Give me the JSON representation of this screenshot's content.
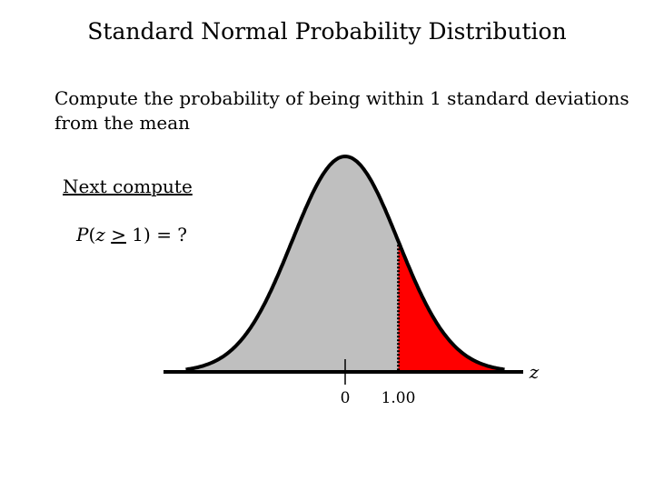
{
  "title": "Standard Normal Probability Distribution",
  "prompt": "Compute the probability of being within 1 standard deviations from the mean",
  "next_label": "Next compute",
  "question": {
    "p": "P",
    "open": "(",
    "z": "z",
    "ge": ">",
    "rest": " 1) = ?"
  },
  "colors": {
    "curve_fill": "#bfbfbf",
    "shaded_tail": "#ff0000",
    "outline": "#000000"
  },
  "chart_data": {
    "type": "area",
    "distribution": "standard normal",
    "xlim": [
      -3,
      3
    ],
    "shaded_region": {
      "from": 1.0,
      "to": 3.0
    },
    "ticks": [
      {
        "value": 0,
        "label": "0"
      },
      {
        "value": 1.0,
        "label": "1.00"
      }
    ],
    "xlabel": "z"
  }
}
